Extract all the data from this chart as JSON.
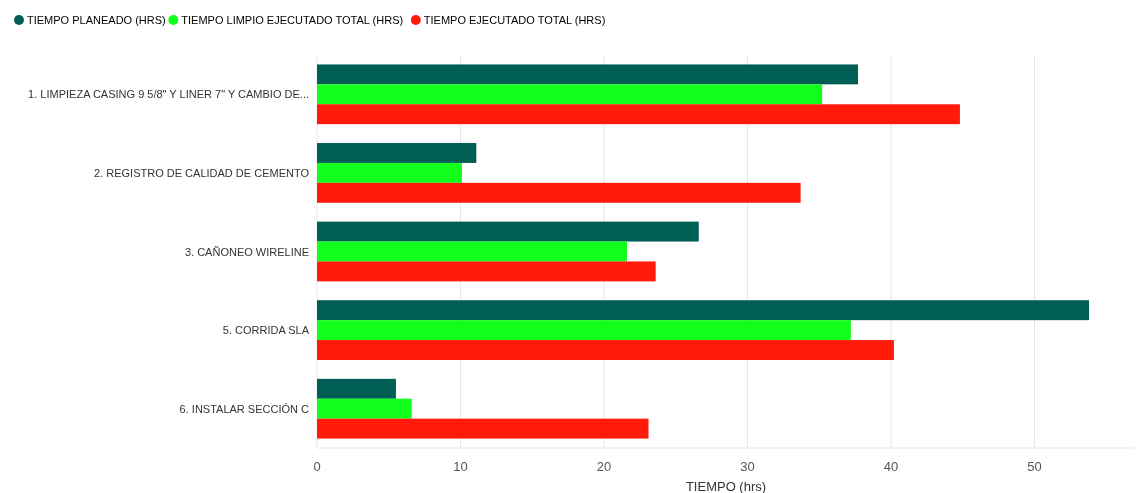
{
  "chart_data": {
    "type": "bar",
    "orientation": "horizontal",
    "xlabel": "TIEMPO (hrs)",
    "categories": [
      "1. LIMPIEZA CASING 9 5/8\" Y LINER 7\" Y CAMBIO DE...",
      "2. REGISTRO DE CALIDAD DE CEMENTO",
      "3. CAÑONEO WIRELINE",
      "5. CORRIDA SLA",
      "6. INSTALAR SECCIÓN C"
    ],
    "series": [
      {
        "name": "TIEMPO PLANEADO (HRS)",
        "color": "#005e55",
        "values": [
          37.7,
          11.1,
          26.6,
          53.8,
          5.5
        ]
      },
      {
        "name": "TIEMPO LIMPIO EJECUTADO TOTAL (HRS)",
        "color": "#11ff1a",
        "values": [
          35.2,
          10.1,
          21.6,
          37.2,
          6.6
        ]
      },
      {
        "name": "TIEMPO EJECUTADO TOTAL (HRS)",
        "color": "#ff1a0a",
        "values": [
          44.8,
          33.7,
          23.6,
          40.2,
          23.1
        ]
      }
    ],
    "xlim": [
      0,
      57
    ],
    "xticks": [
      0,
      10,
      20,
      30,
      40,
      50
    ],
    "grid": "x",
    "legend": "top left"
  }
}
